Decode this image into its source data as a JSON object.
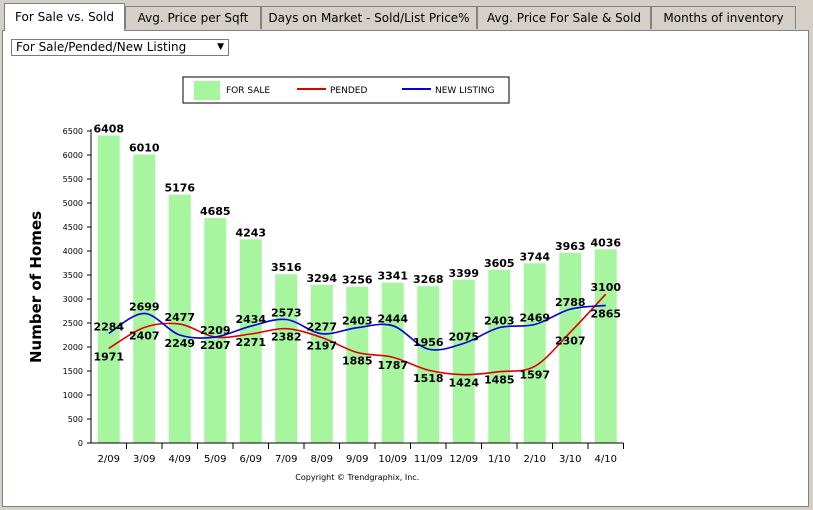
{
  "tabs": [
    {
      "label": "For Sale vs. Sold",
      "active": true
    },
    {
      "label": "Avg. Price per Sqft",
      "active": false
    },
    {
      "label": "Days on Market - Sold/List Price%",
      "active": false
    },
    {
      "label": "Avg. Price For Sale & Sold",
      "active": false
    },
    {
      "label": "Months of inventory",
      "active": false
    }
  ],
  "dropdown": {
    "selected": "For Sale/Pended/New Listing"
  },
  "colors": {
    "for_sale": "#a8f5a0",
    "pended": "#e00000",
    "new_listing": "#0000e0"
  },
  "chart_data": {
    "type": "bar",
    "title": "",
    "xlabel": "",
    "ylabel": "Number of Homes",
    "ylim": [
      0,
      6500
    ],
    "yticks": [
      0,
      500,
      1000,
      1500,
      2000,
      2500,
      3000,
      3500,
      4000,
      4500,
      5000,
      5500,
      6000,
      6500
    ],
    "legend_position": "top-center",
    "categories": [
      "2/09",
      "3/09",
      "4/09",
      "5/09",
      "6/09",
      "7/09",
      "8/09",
      "9/09",
      "10/09",
      "11/09",
      "12/09",
      "1/10",
      "2/10",
      "3/10",
      "4/10"
    ],
    "series": [
      {
        "name": "FOR SALE",
        "type": "bar",
        "values": [
          6408,
          6010,
          5176,
          4685,
          4243,
          3516,
          3294,
          3256,
          3341,
          3268,
          3399,
          3605,
          3744,
          3963,
          4036
        ]
      },
      {
        "name": "PENDED",
        "type": "line",
        "values": [
          1971,
          2407,
          2477,
          2209,
          2271,
          2382,
          2197,
          1885,
          1787,
          1518,
          1424,
          1485,
          1597,
          2307,
          3100
        ]
      },
      {
        "name": "NEW LISTING",
        "type": "line",
        "values": [
          2284,
          2699,
          2249,
          2207,
          2434,
          2573,
          2277,
          2403,
          2444,
          1956,
          2075,
          2403,
          2469,
          2788,
          2865
        ]
      }
    ],
    "footer": "Copyright © Trendgraphix, Inc."
  }
}
